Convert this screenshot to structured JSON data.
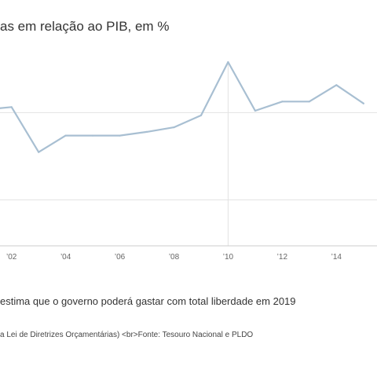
{
  "header": {
    "title": "as em relação ao PIB, em %"
  },
  "chart_data": {
    "type": "line",
    "x": [
      2001,
      2002,
      2003,
      2004,
      2005,
      2006,
      2007,
      2008,
      2009,
      2010,
      2011,
      2012,
      2013,
      2014,
      2015
    ],
    "series": [
      {
        "values": [
          7.4,
          7.55,
          5.1,
          6.0,
          6.0,
          6.0,
          6.2,
          6.45,
          7.1,
          10.0,
          7.35,
          7.85,
          7.85,
          8.75,
          7.75
        ]
      }
    ],
    "xlim": [
      2000.5,
      2015.5
    ],
    "ylim": [
      0,
      10
    ],
    "gridlines_y": [
      2.5,
      7.25
    ],
    "gridlines_x": [
      2010
    ],
    "x_ticks": [
      {
        "x": 2002,
        "label": "’02"
      },
      {
        "x": 2004,
        "label": "’04"
      },
      {
        "x": 2006,
        "label": "’06"
      },
      {
        "x": 2008,
        "label": "’08"
      },
      {
        "x": 2010,
        "label": "’10"
      },
      {
        "x": 2012,
        "label": "’12"
      },
      {
        "x": 2014,
        "label": "’14"
      }
    ],
    "colors": {
      "line": "#a8bfd2",
      "grid": "#e3e3e3",
      "axis": "#cccccc"
    },
    "grid": true
  },
  "footer": {
    "note": "estima que o governo poderá gastar com total liberdade em 2019",
    "source": "a Lei de Diretrizes Orçamentárias) <br>Fonte: Tesouro Nacional e PLDO"
  }
}
